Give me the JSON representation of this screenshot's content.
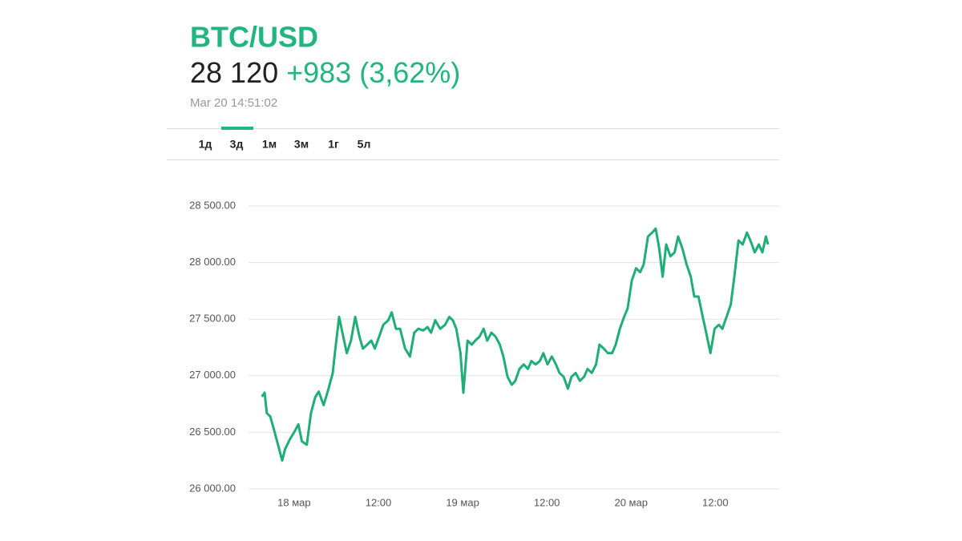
{
  "header": {
    "title": "BTC/USD",
    "price": "28 120",
    "change": "+983 (3,62%)",
    "timestamp": "Mar 20 14:51:02"
  },
  "tabs": {
    "items": [
      "1д",
      "3д",
      "1м",
      "3м",
      "1г",
      "5л"
    ],
    "active": 1
  },
  "chart_data": {
    "type": "line",
    "color": "#1fae76",
    "grid": true,
    "xlim": [
      -6.5,
      69.1
    ],
    "ylim": [
      26000,
      28500
    ],
    "xticks": [
      {
        "value": 0,
        "label": "18 мар"
      },
      {
        "value": 12,
        "label": "12:00"
      },
      {
        "value": 24,
        "label": "19 мар"
      },
      {
        "value": 36,
        "label": "12:00"
      },
      {
        "value": 48,
        "label": "20 мар"
      },
      {
        "value": 60,
        "label": "12:00"
      }
    ],
    "yticks": [
      {
        "value": 26000,
        "label": "26 000.00"
      },
      {
        "value": 26500,
        "label": "26 500.00"
      },
      {
        "value": 27000,
        "label": "27 000.00"
      },
      {
        "value": 27500,
        "label": "27 500.00"
      },
      {
        "value": 28000,
        "label": "28 000.00"
      },
      {
        "value": 28500,
        "label": "28 500.00"
      }
    ],
    "x": [
      -4.6,
      -4.2,
      -3.9,
      -3.4,
      -2.9,
      -2.3,
      -1.7,
      -1.3,
      -0.6,
      0,
      0.6,
      1.1,
      1.8,
      2.4,
      3.0,
      3.5,
      4.2,
      4.9,
      5.5,
      5.8,
      6.4,
      7.0,
      7.5,
      8.1,
      8.7,
      9.3,
      9.8,
      10.4,
      11.0,
      11.5,
      12.1,
      12.7,
      13.4,
      13.9,
      14.5,
      15.1,
      15.8,
      16.5,
      17.1,
      17.7,
      18.4,
      19.0,
      19.5,
      20.1,
      20.8,
      21.5,
      22.1,
      22.6,
      23.1,
      23.7,
      24.1,
      24.7,
      25.3,
      25.8,
      26.4,
      27.0,
      27.5,
      28.1,
      28.7,
      29.3,
      29.8,
      30.4,
      31.0,
      31.5,
      32.1,
      32.7,
      33.3,
      33.8,
      34.4,
      35.0,
      35.5,
      36.1,
      36.7,
      37.3,
      37.8,
      38.4,
      39.0,
      39.5,
      40.1,
      40.7,
      41.3,
      41.8,
      42.4,
      43.0,
      43.5,
      44.1,
      44.7,
      45.3,
      45.8,
      46.4,
      47.0,
      47.5,
      48.1,
      48.7,
      49.3,
      49.8,
      50.4,
      51.0,
      51.5,
      52.0,
      52.5,
      53.0,
      53.6,
      54.2,
      54.7,
      55.3,
      55.9,
      56.5,
      57.0,
      57.6,
      58.2,
      58.7,
      59.3,
      59.9,
      60.5,
      61.0,
      61.6,
      62.2,
      62.7,
      63.3,
      63.9,
      64.5,
      65.0,
      65.6,
      66.2,
      66.7,
      67.2,
      67.5
    ],
    "values": [
      26815,
      26850,
      26670,
      26640,
      26530,
      26390,
      26250,
      26350,
      26440,
      26500,
      26570,
      26420,
      26390,
      26670,
      26810,
      26860,
      26740,
      26885,
      27025,
      27200,
      27520,
      27345,
      27200,
      27310,
      27520,
      27345,
      27240,
      27275,
      27310,
      27240,
      27345,
      27450,
      27490,
      27560,
      27415,
      27415,
      27240,
      27170,
      27380,
      27415,
      27400,
      27430,
      27380,
      27490,
      27415,
      27450,
      27520,
      27490,
      27415,
      27200,
      26850,
      27310,
      27275,
      27310,
      27345,
      27415,
      27310,
      27380,
      27345,
      27275,
      27170,
      26990,
      26920,
      26955,
      27060,
      27100,
      27060,
      27130,
      27100,
      27130,
      27200,
      27100,
      27170,
      27100,
      27025,
      26990,
      26885,
      26990,
      27025,
      26955,
      26990,
      27060,
      27025,
      27100,
      27275,
      27240,
      27200,
      27200,
      27275,
      27415,
      27520,
      27595,
      27840,
      27950,
      27915,
      27985,
      28230,
      28265,
      28300,
      28125,
      27875,
      28160,
      28055,
      28090,
      28230,
      28125,
      27985,
      27875,
      27700,
      27700,
      27520,
      27380,
      27200,
      27415,
      27450,
      27415,
      27520,
      27630,
      27875,
      28195,
      28160,
      28265,
      28195,
      28090,
      28160,
      28090,
      28230,
      28160
    ]
  }
}
